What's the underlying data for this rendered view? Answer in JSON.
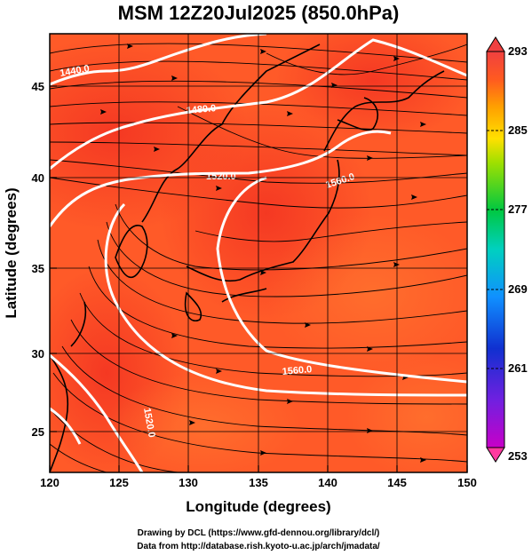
{
  "title": "MSM 12Z20Jul2025 (850.0hPa)",
  "x_axis": {
    "label": "Longitude (degrees)",
    "range": [
      120,
      150
    ],
    "ticks": [
      "120",
      "125",
      "130",
      "135",
      "140",
      "145",
      "150"
    ]
  },
  "y_axis": {
    "label": "Latitude  (degrees)",
    "range": [
      22.5,
      48
    ],
    "ticks": [
      "25",
      "30",
      "35",
      "40",
      "45"
    ]
  },
  "colorbar": {
    "min": 253,
    "max": 293,
    "labels": [
      "293",
      "285",
      "277",
      "269",
      "261",
      "253"
    ],
    "colors": [
      "#ff2a80",
      "#c800c8",
      "#8000ff",
      "#2020d0",
      "#1060ff",
      "#00c8ff",
      "#00d8a0",
      "#00c840",
      "#60e000",
      "#c8e800",
      "#ffd800",
      "#ffa000",
      "#ff6a20",
      "#ff3a20",
      "#f04040"
    ]
  },
  "contours": [
    {
      "label": "1440.0"
    },
    {
      "label": "1480.0"
    },
    {
      "label": "1520.0"
    },
    {
      "label": "1560.0"
    },
    {
      "label": "1560.0"
    },
    {
      "label": "1520.0"
    }
  ],
  "credits": [
    "Drawing by DCL (https://www.gfd-dennou.org/library/dcl/)",
    "Data from http://database.rish.kyoto-u.ac.jp/arch/jmadata/"
  ],
  "grid": true
}
